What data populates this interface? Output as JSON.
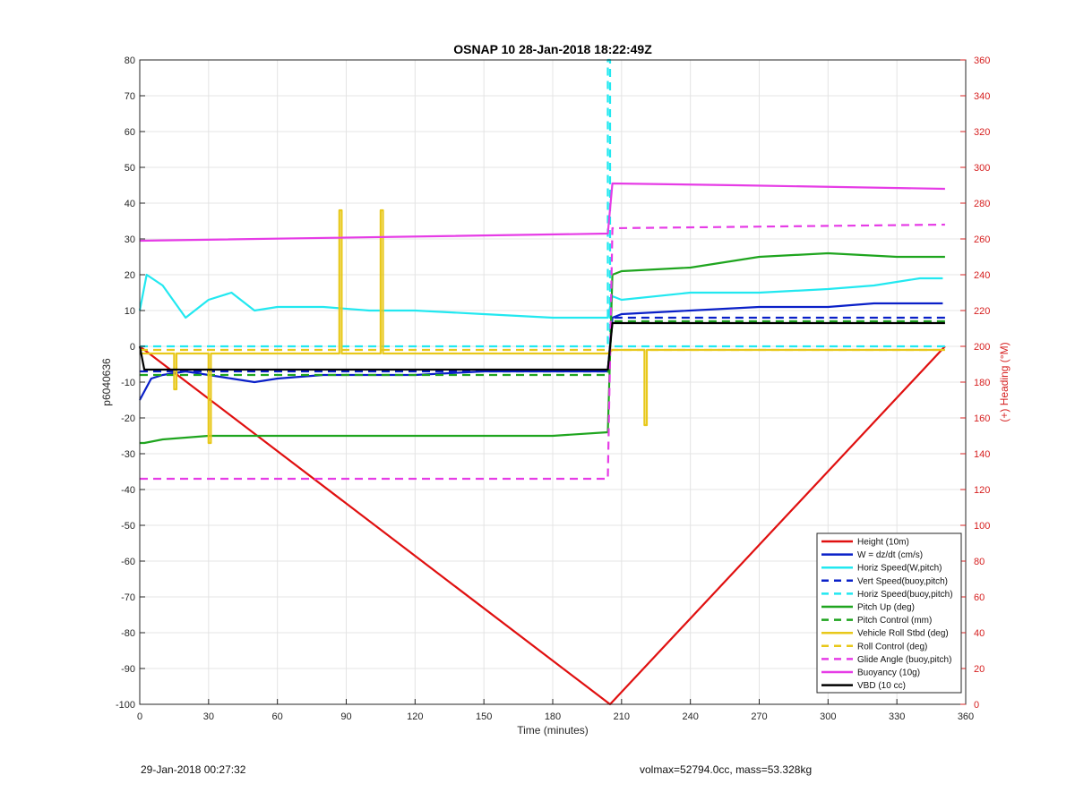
{
  "chart_data": {
    "type": "line",
    "title": "OSNAP 10 28-Jan-2018 18:22:49Z",
    "xlabel": "Time (minutes)",
    "ylabel": "p6040636",
    "y2label": "(+) Heading (°M)",
    "xlim": [
      0,
      360
    ],
    "ylim": [
      -100,
      80
    ],
    "y2lim": [
      0,
      360
    ],
    "xticks": [
      0,
      30,
      60,
      90,
      120,
      150,
      180,
      210,
      240,
      270,
      300,
      330,
      360
    ],
    "yticks": [
      -100,
      -90,
      -80,
      -70,
      -60,
      -50,
      -40,
      -30,
      -20,
      -10,
      0,
      10,
      20,
      30,
      40,
      50,
      60,
      70,
      80
    ],
    "y2ticks": [
      0,
      20,
      40,
      60,
      80,
      100,
      120,
      140,
      160,
      180,
      200,
      220,
      240,
      260,
      280,
      300,
      320,
      340,
      360
    ],
    "grid": true,
    "legend_position": "bottom-right",
    "series": [
      {
        "name": "Height (10m)",
        "color": "#e01010",
        "style": "solid",
        "x": [
          0,
          205,
          351
        ],
        "y": [
          0,
          -100,
          0
        ]
      },
      {
        "name": "W = dz/dt (cm/s)",
        "color": "#0a20c8",
        "style": "solid",
        "x": [
          0,
          5,
          10,
          20,
          30,
          40,
          50,
          60,
          80,
          100,
          120,
          150,
          180,
          204,
          206,
          210,
          240,
          270,
          300,
          320,
          340,
          350
        ],
        "y": [
          -15,
          -9,
          -8,
          -7,
          -8,
          -9,
          -10,
          -9,
          -8,
          -8,
          -8,
          -7,
          -7,
          -7,
          8,
          9,
          10,
          11,
          11,
          12,
          12,
          12
        ]
      },
      {
        "name": "Horiz Speed(W,pitch)",
        "color": "#22e8f0",
        "style": "solid",
        "x": [
          0,
          3,
          10,
          20,
          30,
          40,
          50,
          60,
          80,
          100,
          120,
          150,
          180,
          204,
          206,
          210,
          240,
          270,
          300,
          320,
          340,
          350
        ],
        "y": [
          10,
          20,
          17,
          8,
          13,
          15,
          10,
          11,
          11,
          10,
          10,
          9,
          8,
          8,
          14,
          13,
          15,
          15,
          16,
          17,
          19,
          19
        ]
      },
      {
        "name": "Vert Speed(buoy,pitch)",
        "color": "#0a20c8",
        "style": "dashed",
        "x": [
          0,
          204,
          206,
          351
        ],
        "y": [
          -7,
          -7,
          8,
          8
        ]
      },
      {
        "name": "Horiz Speed(buoy,pitch)",
        "color": "#22e8f0",
        "style": "dashed",
        "x": [
          0,
          204,
          204,
          205,
          205,
          206,
          351
        ],
        "y": [
          0,
          0,
          80,
          80,
          0,
          0,
          0
        ]
      },
      {
        "name": "Pitch Up (deg)",
        "color": "#1fa51f",
        "style": "solid",
        "x": [
          0,
          2,
          10,
          30,
          60,
          90,
          120,
          150,
          180,
          204,
          206,
          210,
          240,
          270,
          300,
          330,
          351
        ],
        "y": [
          -27,
          -27,
          -26,
          -25,
          -25,
          -25,
          -25,
          -25,
          -25,
          -24,
          20,
          21,
          22,
          25,
          26,
          25,
          25
        ]
      },
      {
        "name": "Pitch Control (mm)",
        "color": "#1fa51f",
        "style": "dashed",
        "x": [
          0,
          204,
          206,
          351
        ],
        "y": [
          -8,
          -8,
          7,
          7
        ]
      },
      {
        "name": "Vehicle Roll Stbd (deg)",
        "color": "#e8c81a",
        "style": "solid",
        "x": [
          0,
          15,
          15,
          16,
          16,
          30,
          30,
          31,
          31,
          87,
          87,
          88,
          88,
          105,
          105,
          106,
          106,
          204,
          206,
          220,
          220,
          221,
          221,
          330,
          351
        ],
        "y": [
          -2,
          -2,
          -12,
          -12,
          -2,
          -2,
          -27,
          -27,
          -2,
          -2,
          38,
          38,
          -2,
          -2,
          38,
          38,
          -2,
          -2,
          -1,
          -1,
          -22,
          -22,
          -1,
          -1,
          -1
        ]
      },
      {
        "name": "Roll Control (deg)",
        "color": "#e8c81a",
        "style": "dashed",
        "x": [
          0,
          204,
          206,
          351
        ],
        "y": [
          -1,
          -1,
          -1,
          -1
        ]
      },
      {
        "name": "Glide Angle (buoy,pitch)",
        "color": "#e63ce6",
        "style": "dashed",
        "x": [
          0,
          204,
          206,
          351
        ],
        "y": [
          -37,
          -37,
          33,
          34
        ]
      },
      {
        "name": "Buoyancy (10g)",
        "color": "#e63ce6",
        "style": "solid",
        "x": [
          0,
          204,
          206,
          260,
          351
        ],
        "y": [
          29.5,
          31.5,
          45.5,
          45,
          44
        ]
      },
      {
        "name": "VBD (10 cc)",
        "color": "#000000",
        "style": "solid",
        "x": [
          0,
          2,
          204,
          206,
          351
        ],
        "y": [
          0,
          -6.5,
          -6.5,
          6.5,
          6.5
        ]
      }
    ]
  },
  "footer": {
    "left": "29-Jan-2018 00:27:32",
    "right": "volmax=52794.0cc, mass=53.328kg"
  }
}
